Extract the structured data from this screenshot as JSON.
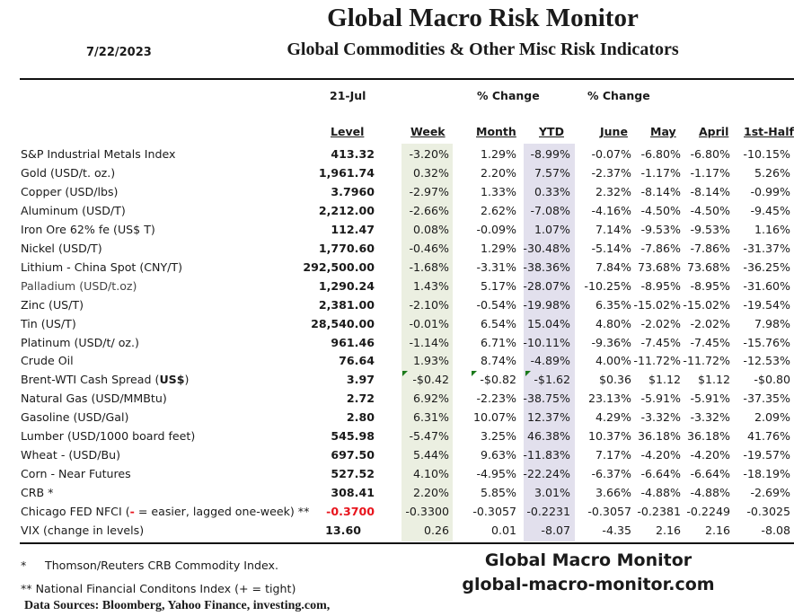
{
  "header": {
    "title": "Global Macro Risk Monitor",
    "subtitle": "Global Commodities & Other Misc Risk Indicators",
    "date": "7/22/2023"
  },
  "columns": {
    "date_label": "21-Jul",
    "pct_change_1": "% Change",
    "pct_change_2": "% Change",
    "level": "Level",
    "week": "Week",
    "month": "Month",
    "ytd": "YTD",
    "june": "June",
    "may": "May",
    "april": "April",
    "half": "1st-Half"
  },
  "colors": {
    "week_shade": "#ebefe1",
    "ytd_shade": "#e2e0ed",
    "negative_red": "#e8141c",
    "comment_marker": "#1b7a1b"
  },
  "rows": [
    {
      "label": "S&P Industrial Metals Index",
      "level": "413.32",
      "week": "-3.20%",
      "month": "1.29%",
      "ytd": "-8.99%",
      "june": "-0.07%",
      "may": "-6.80%",
      "april": "-6.80%",
      "half": "-10.15%"
    },
    {
      "label": "Gold (USD/t. oz.)",
      "level": "1,961.74",
      "week": "0.32%",
      "month": "2.20%",
      "ytd": "7.57%",
      "june": "-2.37%",
      "may": "-1.17%",
      "april": "-1.17%",
      "half": "5.26%"
    },
    {
      "label": "Copper (USD/lbs)",
      "level": "3.7960",
      "week": "-2.97%",
      "month": "1.33%",
      "ytd": "0.33%",
      "june": "2.32%",
      "may": "-8.14%",
      "april": "-8.14%",
      "half": "-0.99%"
    },
    {
      "label": "Aluminum (USD/T)",
      "level": "2,212.00",
      "week": "-2.66%",
      "month": "2.62%",
      "ytd": "-7.08%",
      "june": "-4.16%",
      "may": "-4.50%",
      "april": "-4.50%",
      "half": "-9.45%"
    },
    {
      "label": "Iron Ore 62% fe (US$ T)",
      "level": "112.47",
      "week": "0.08%",
      "month": "-0.09%",
      "ytd": "1.07%",
      "june": "7.14%",
      "may": "-9.53%",
      "april": "-9.53%",
      "half": "1.16%"
    },
    {
      "label": "Nickel (USD/T)",
      "level": "1,770.60",
      "week": "-0.46%",
      "month": "1.29%",
      "ytd": "-30.48%",
      "june": "-5.14%",
      "may": "-7.86%",
      "april": "-7.86%",
      "half": "-31.37%"
    },
    {
      "label": "Lithium - China Spot (CNY/T)",
      "level": "292,500.00",
      "week": "-1.68%",
      "month": "-3.31%",
      "ytd": "-38.36%",
      "june": "7.84%",
      "may": "73.68%",
      "april": "73.68%",
      "half": "-36.25%"
    },
    {
      "label": "Palladium (USD/t.oz)",
      "level": "1,290.24",
      "week": "1.43%",
      "month": "5.17%",
      "ytd": "-28.07%",
      "june": "-10.25%",
      "may": "-8.95%",
      "april": "-8.95%",
      "half": "-31.60%"
    },
    {
      "label": "Zinc (US/T)",
      "level": "2,381.00",
      "week": "-2.10%",
      "month": "-0.54%",
      "ytd": "-19.98%",
      "june": "6.35%",
      "may": "-15.02%",
      "april": "-15.02%",
      "half": "-19.54%"
    },
    {
      "label": "Tin (US/T)",
      "level": "28,540.00",
      "week": "-0.01%",
      "month": "6.54%",
      "ytd": "15.04%",
      "june": "4.80%",
      "may": "-2.02%",
      "april": "-2.02%",
      "half": "7.98%"
    },
    {
      "label": "Platinum (USD/t/ oz.)",
      "level": "961.46",
      "week": "-1.14%",
      "month": "6.71%",
      "ytd": "-10.11%",
      "june": "-9.36%",
      "may": "-7.45%",
      "april": "-7.45%",
      "half": "-15.76%"
    },
    {
      "label": "Crude Oil",
      "level": "76.64",
      "week": "1.93%",
      "month": "8.74%",
      "ytd": "-4.89%",
      "june": "4.00%",
      "may": "-11.72%",
      "april": "-11.72%",
      "half": "-12.53%"
    },
    {
      "label_pre": "Brent-WTI Cash Spread (",
      "label_bold": "US$",
      "label_post": ")",
      "level": "3.97",
      "week": "-$0.42",
      "month": "-$0.82",
      "ytd": "-$1.62",
      "june": "$0.36",
      "may": "$1.12",
      "april": "$1.12",
      "half": "-$0.80"
    },
    {
      "label": "Natural Gas  (USD/MMBtu)",
      "level": "2.72",
      "week": "6.92%",
      "month": "-2.23%",
      "ytd": "-38.75%",
      "june": "23.13%",
      "may": "-5.91%",
      "april": "-5.91%",
      "half": "-37.35%"
    },
    {
      "label": "Gasoline (USD/Gal)",
      "level": "2.80",
      "week": "6.31%",
      "month": "10.07%",
      "ytd": "12.37%",
      "june": "4.29%",
      "may": "-3.32%",
      "april": "-3.32%",
      "half": "2.09%"
    },
    {
      "label": "Lumber (USD/1000 board feet)",
      "level": "545.98",
      "week": "-5.47%",
      "month": "3.25%",
      "ytd": "46.38%",
      "june": "10.37%",
      "may": "36.18%",
      "april": "36.18%",
      "half": "41.76%"
    },
    {
      "label": "Wheat - (USD/Bu)",
      "level": "697.50",
      "week": "5.44%",
      "month": "9.63%",
      "ytd": "-11.83%",
      "june": "7.17%",
      "may": "-4.20%",
      "april": "-4.20%",
      "half": "-19.57%"
    },
    {
      "label": "Corn - Near Futures",
      "level": "527.52",
      "week": "4.10%",
      "month": "-4.95%",
      "ytd": "-22.24%",
      "june": "-6.37%",
      "may": "-6.64%",
      "april": "-6.64%",
      "half": "-18.19%"
    },
    {
      "label": "CRB *",
      "level": "308.41",
      "week": "2.20%",
      "month": "5.85%",
      "ytd": "3.01%",
      "june": "3.66%",
      "may": "-4.88%",
      "april": "-4.88%",
      "half": "-2.69%"
    },
    {
      "label_pre": "Chicago FED NFCI (",
      "label_red": "-",
      "label_post": " = easier, lagged one-week) **",
      "level": "-0.3700",
      "week": "-0.3300",
      "month": "-0.3057",
      "ytd": "-0.2231",
      "june": "-0.3057",
      "may": "-0.2381",
      "april": "-0.2249",
      "half": "-0.3025"
    },
    {
      "label": "VIX (change in levels)",
      "level": "13.60",
      "week": "0.26",
      "month": "0.01",
      "ytd": "-8.07",
      "june": "-4.35",
      "may": "2.16",
      "april": "2.16",
      "half": "-8.08"
    }
  ],
  "footer": {
    "note1_star": "*",
    "note1": "Thomson/Reuters CRB Commodity Index.",
    "note2": "** National Financial Conditons Index (+ =  tight)",
    "sources": "Data Sources:  Bloomberg,  Yahoo Finance, investing.com,",
    "brand_name": "Global Macro Monitor",
    "brand_url": "global-macro-monitor.com"
  }
}
